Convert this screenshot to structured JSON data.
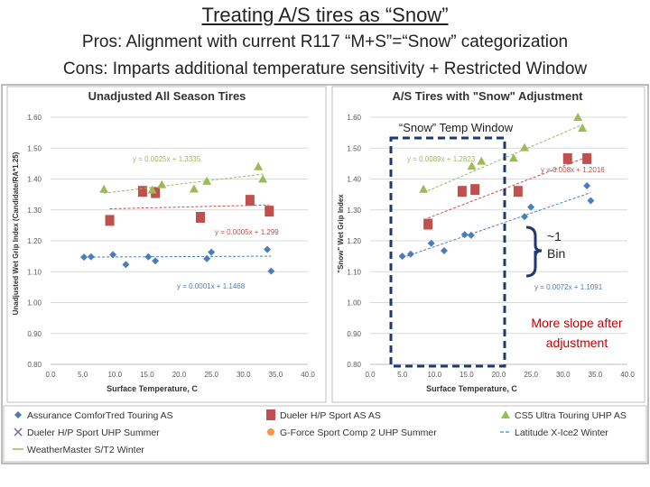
{
  "slide": {
    "title": "Treating A/S tires as “Snow”",
    "pros": "Pros: Alignment with current R117 “M+S”=“Snow” categorization",
    "cons": "Cons: Imparts additional temperature sensitivity + Restricted Window"
  },
  "annotations": {
    "snow_window": "“Snow” Temp Window",
    "bin_line1": "~1",
    "bin_line2": "Bin",
    "slope_line1": "More slope after",
    "slope_line2": "adjustment"
  },
  "colors": {
    "assurance": "#4a7ebb",
    "dueler_hp": "#c0504d",
    "cs5": "#9bbb59",
    "dueler_uhp": "#8064a2",
    "gforce": "#f79646",
    "latitude": "#4bacc6",
    "weathermaster": "#9bbb59",
    "window_box": "#1f3a6e",
    "annotation_red": "#c00000"
  },
  "legend": [
    {
      "label": "Assurance ComforTred Touring AS",
      "marker": "diamond",
      "color": "#4a7ebb"
    },
    {
      "label": "Dueler H/P Sport AS AS",
      "marker": "square",
      "color": "#c0504d"
    },
    {
      "label": "CS5 Ultra Touring UHP AS",
      "marker": "triangle",
      "color": "#9bbb59"
    },
    {
      "label": "Dueler H/P Sport UHP Summer",
      "marker": "x",
      "color": "#8064a2"
    },
    {
      "label": "G-Force Sport Comp 2 UHP Summer",
      "marker": "circle",
      "color": "#f79646"
    },
    {
      "label": "Latitude X-Ice2 Winter",
      "marker": "dash",
      "color": "#4bacc6"
    },
    {
      "label": "WeatherMaster S/T2 Winter",
      "marker": "line",
      "color": "#9bbb59"
    }
  ],
  "chart_data": [
    {
      "type": "scatter",
      "title": "Unadjusted All Season Tires",
      "xlabel": "Surface Temperature, C",
      "ylabel": "Unadjusted Wet Grip Index (Candidate/RA*1.25)",
      "xlim": [
        0,
        40
      ],
      "ylim": [
        0.8,
        1.6
      ],
      "xticks": [
        "0.0",
        "5.0",
        "10.0",
        "15.0",
        "20.0",
        "25.0",
        "30.0",
        "35.0",
        "40.0"
      ],
      "yticks": [
        "0.80",
        "0.90",
        "1.00",
        "1.10",
        "1.20",
        "1.30",
        "1.40",
        "1.50",
        "1.60"
      ],
      "grid": true,
      "series": [
        {
          "name": "Assurance ComforTred Touring AS",
          "marker": "diamond",
          "color": "#4a7ebb",
          "x": [
            5.2,
            6.3,
            9.7,
            11.7,
            15.2,
            16.3,
            24.3,
            25.0,
            33.7,
            34.3
          ],
          "y": [
            1.147,
            1.148,
            1.155,
            1.123,
            1.148,
            1.135,
            1.142,
            1.163,
            1.172,
            1.102
          ],
          "trend": {
            "slope": 0.0001,
            "intercept": 1.1468
          },
          "equation": "y = 0.0001x + 1.1468"
        },
        {
          "name": "Dueler H/P Sport AS AS",
          "marker": "square",
          "color": "#c0504d",
          "x": [
            9.2,
            14.3,
            16.3,
            23.3,
            31.0,
            34.0
          ],
          "y": [
            1.266,
            1.36,
            1.356,
            1.276,
            1.331,
            1.296
          ],
          "trend": {
            "slope": 0.0005,
            "intercept": 1.299
          },
          "equation": "y = 0.0005x + 1.299"
        },
        {
          "name": "CS5 Ultra Touring UHP AS",
          "marker": "triangle",
          "color": "#9bbb59",
          "x": [
            8.3,
            15.8,
            17.3,
            22.3,
            24.3,
            32.3,
            33.0
          ],
          "y": [
            1.367,
            1.365,
            1.382,
            1.368,
            1.393,
            1.44,
            1.4
          ],
          "trend": {
            "slope": 0.0025,
            "intercept": 1.3335
          },
          "equation": "y = 0.0025x + 1.3335"
        }
      ]
    },
    {
      "type": "scatter",
      "title": "A/S Tires with \"Snow\" Adjustment",
      "xlabel": "Surface Temperature, C",
      "ylabel": "\"Snow\" Wet Grip Index",
      "xlim": [
        0,
        40
      ],
      "ylim": [
        0.8,
        1.6
      ],
      "xticks": [
        "0.0",
        "5.0",
        "10.0",
        "15.0",
        "20.0",
        "25.0",
        "30.0",
        "35.0",
        "40.0"
      ],
      "yticks": [
        "0.80",
        "0.90",
        "1.00",
        "1.10",
        "1.20",
        "1.30",
        "1.40",
        "1.50",
        "1.60"
      ],
      "grid": true,
      "series": [
        {
          "name": "Assurance ComforTred Touring AS",
          "marker": "diamond",
          "color": "#4a7ebb",
          "x": [
            5.0,
            6.3,
            9.5,
            11.5,
            14.7,
            15.7,
            24.0,
            25.0,
            33.7,
            34.3
          ],
          "y": [
            1.15,
            1.157,
            1.192,
            1.168,
            1.22,
            1.218,
            1.278,
            1.309,
            1.378,
            1.33
          ],
          "trend": {
            "slope": 0.0072,
            "intercept": 1.1091
          },
          "equation": "y = 0.0072x + 1.1091"
        },
        {
          "name": "Dueler H/P Sport AS AS",
          "marker": "square",
          "color": "#c0504d",
          "x": [
            9.0,
            14.3,
            16.3,
            23.0,
            30.7,
            33.7
          ],
          "y": [
            1.254,
            1.36,
            1.366,
            1.36,
            1.466,
            1.466
          ],
          "trend": {
            "slope": 0.008,
            "intercept": 1.2016
          },
          "equation": "y = 0.008x + 1.2016"
        },
        {
          "name": "CS5 Ultra Touring UHP AS",
          "marker": "triangle",
          "color": "#9bbb59",
          "x": [
            8.3,
            15.8,
            17.3,
            22.3,
            24.0,
            32.3,
            33.0
          ],
          "y": [
            1.367,
            1.442,
            1.458,
            1.468,
            1.502,
            1.6,
            1.565
          ],
          "trend": {
            "slope": 0.0089,
            "intercept": 1.2823
          },
          "equation": "y = 0.0089x + 1.2823"
        }
      ]
    }
  ]
}
